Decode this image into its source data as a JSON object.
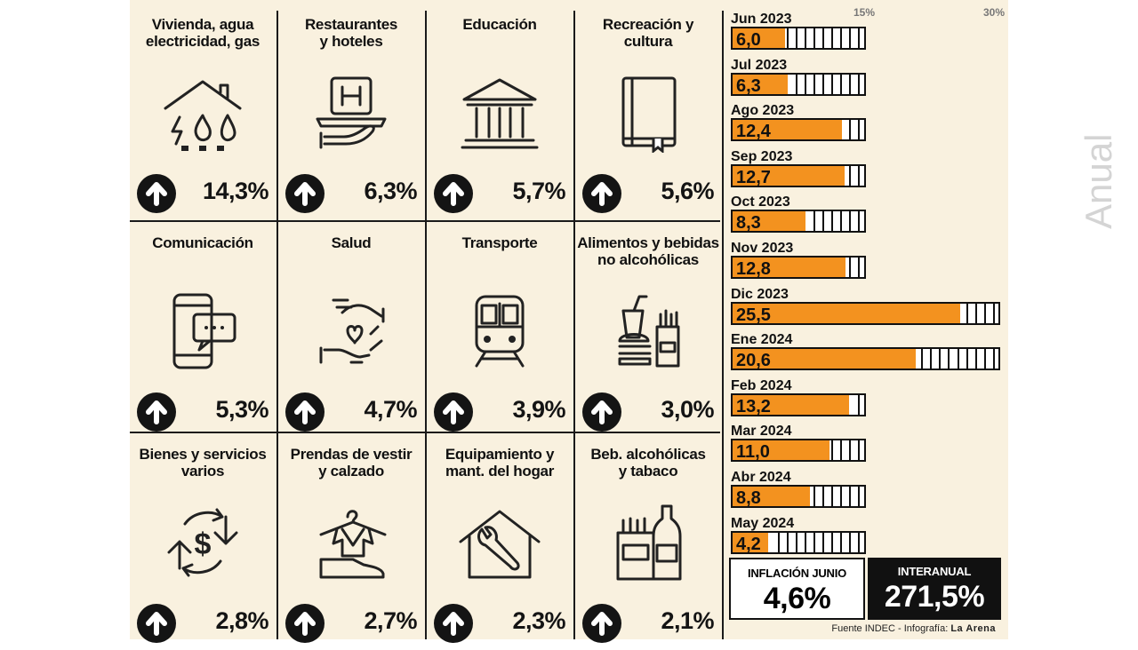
{
  "categories": [
    {
      "title": "Vivienda, agua\nelectricidad, gas",
      "pct": "14,3%",
      "icon": "house-utilities-icon"
    },
    {
      "title": "Restaurantes\ny hoteles",
      "pct": "6,3%",
      "icon": "hotel-service-icon"
    },
    {
      "title": "Educación",
      "pct": "5,7%",
      "icon": "building-columns-icon"
    },
    {
      "title": "Recreación y\ncultura",
      "pct": "5,6%",
      "icon": "book-icon"
    },
    {
      "title": "Comunicación",
      "pct": "5,3%",
      "icon": "phone-chat-icon"
    },
    {
      "title": "Salud",
      "pct": "4,7%",
      "icon": "care-hands-heart-icon"
    },
    {
      "title": "Transporte",
      "pct": "3,9%",
      "icon": "train-icon"
    },
    {
      "title": "Alimentos y bebidas\nno alcohólicas",
      "pct": "3,0%",
      "icon": "food-drink-icon"
    },
    {
      "title": "Bienes y servicios\nvarios",
      "pct": "2,8%",
      "icon": "money-exchange-icon"
    },
    {
      "title": "Prendas de vestir\ny calzado",
      "pct": "2,7%",
      "icon": "clothes-shoe-icon"
    },
    {
      "title": "Equipamiento y\nmant. del hogar",
      "pct": "2,3%",
      "icon": "house-wrench-icon"
    },
    {
      "title": "Beb. alcohólicas\ny tabaco",
      "pct": "2,1%",
      "icon": "bottle-cigarettes-icon"
    }
  ],
  "chart_data": {
    "type": "bar",
    "orientation": "horizontal",
    "categories": [
      "Jun 2023",
      "Jul 2023",
      "Ago 2023",
      "Sep 2023",
      "Oct 2023",
      "Nov 2023",
      "Dic 2023",
      "Ene 2024",
      "Feb 2024",
      "Mar 2024",
      "Abr 2024",
      "May 2024"
    ],
    "values": [
      6.0,
      6.3,
      12.4,
      12.7,
      8.3,
      12.8,
      25.5,
      20.6,
      13.2,
      11.0,
      8.8,
      4.2
    ],
    "value_labels": [
      "6,0",
      "6,3",
      "12,4",
      "12,7",
      "8,3",
      "12,8",
      "25,5",
      "20,6",
      "13,2",
      "11,0",
      "8,8",
      "4,2"
    ],
    "scale_ticks": [
      "15%",
      "30%"
    ],
    "xlim": [
      0,
      30
    ],
    "bar_color": "#f3921f",
    "side_label": "Anual"
  },
  "summary": {
    "monthly_label": "INFLACIÓN JUNIO",
    "monthly_value": "4,6%",
    "annual_label": "INTERANUAL",
    "annual_value": "271,5%"
  },
  "source": {
    "text": "Fuente INDEC - Infografía:",
    "brand": "La Arena"
  }
}
